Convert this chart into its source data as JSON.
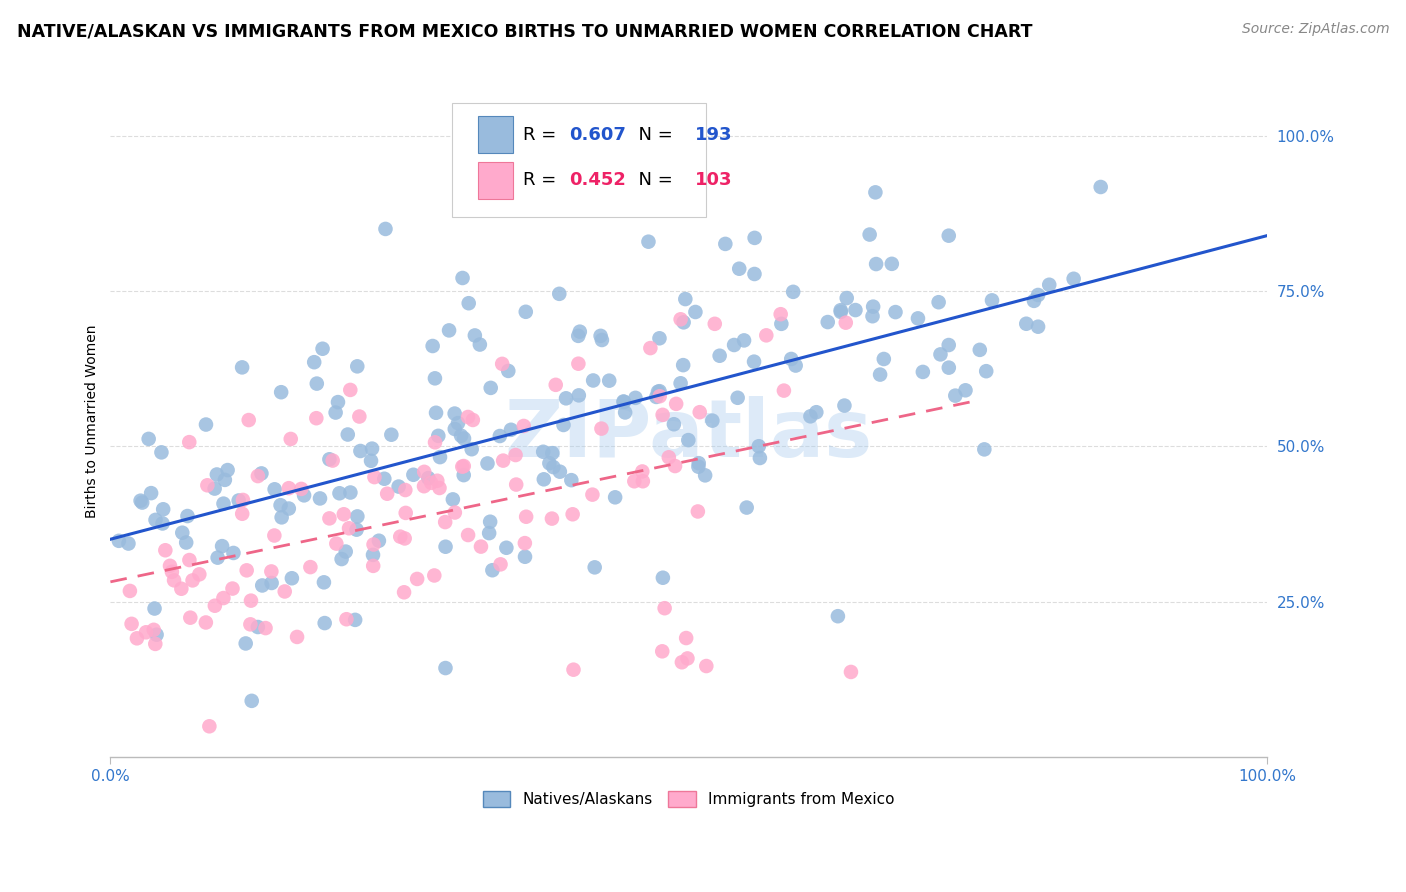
{
  "title": "NATIVE/ALASKAN VS IMMIGRANTS FROM MEXICO BIRTHS TO UNMARRIED WOMEN CORRELATION CHART",
  "source": "Source: ZipAtlas.com",
  "ylabel": "Births to Unmarried Women",
  "xlim": [
    0.0,
    1.0
  ],
  "ylim": [
    0.0,
    1.08
  ],
  "blue_R": 0.607,
  "blue_N": 193,
  "pink_R": 0.452,
  "pink_N": 103,
  "blue_color": "#99BBDD",
  "pink_color": "#FFAACC",
  "blue_line_color": "#2255CC",
  "pink_line_color": "#EE6688",
  "legend_label_blue": "Natives/Alaskans",
  "legend_label_pink": "Immigrants from Mexico",
  "title_fontsize": 12.5,
  "source_fontsize": 10,
  "axis_label_fontsize": 10,
  "tick_fontsize": 11,
  "watermark_text": "ZIPatlas",
  "watermark_color": "#AACCEE",
  "watermark_alpha": 0.4,
  "grid_color": "#DDDDDD",
  "grid_style": "--"
}
